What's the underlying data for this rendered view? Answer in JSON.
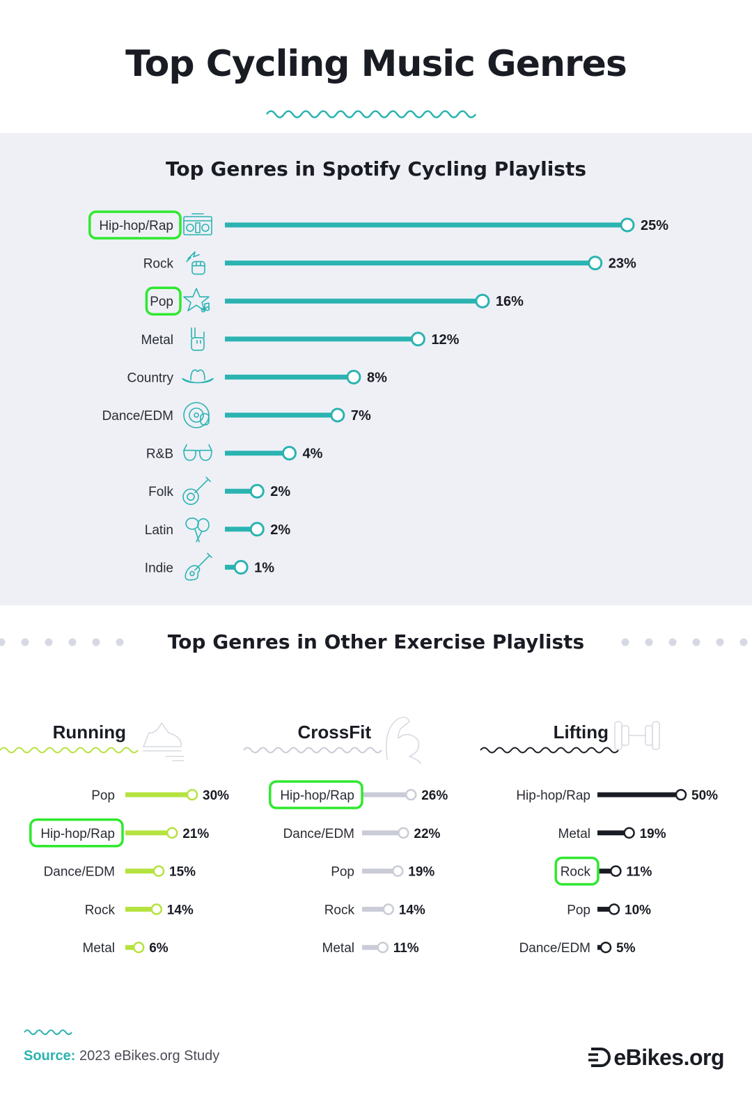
{
  "title": "Top Cycling Music Genres",
  "colors": {
    "teal": "#2bb3b1",
    "lime": "#b5e23f",
    "gray": "#c9cbd6",
    "dark": "#1a1c24",
    "highlight": "#2ee82e"
  },
  "chart_data": [
    {
      "type": "bar",
      "title": "Top Genres in Spotify Cycling Playlists",
      "unit": "%",
      "categories": [
        "Hip-hop/Rap",
        "Rock",
        "Pop",
        "Metal",
        "Country",
        "Dance/EDM",
        "R&B",
        "Folk",
        "Latin",
        "Indie"
      ],
      "values": [
        25,
        23,
        16,
        12,
        8,
        7,
        4,
        2,
        2,
        1
      ],
      "value_labels": [
        "25%",
        "23%",
        "16%",
        "12%",
        "8%",
        "7%",
        "4%",
        "2%",
        "2%",
        "1%"
      ],
      "icons": [
        "boombox-icon",
        "fist-lightning-icon",
        "star-note-icon",
        "rock-hand-icon",
        "cowboy-hat-icon",
        "vinyl-hand-icon",
        "sunglasses-icon",
        "banjo-icon",
        "maracas-icon",
        "guitar-icon"
      ],
      "highlighted": [
        "Hip-hop/Rap",
        "Pop"
      ],
      "xlim": [
        0,
        25
      ]
    },
    {
      "type": "bar",
      "title": "Running",
      "group_title": "Top Genres in Other Exercise Playlists",
      "icon": "running-shoe-icon",
      "categories": [
        "Pop",
        "Hip-hop/Rap",
        "Dance/EDM",
        "Rock",
        "Metal"
      ],
      "values": [
        30,
        21,
        15,
        14,
        6
      ],
      "value_labels": [
        "30%",
        "21%",
        "15%",
        "14%",
        "6%"
      ],
      "highlighted": [
        "Hip-hop/Rap"
      ],
      "xlim": [
        0,
        50
      ]
    },
    {
      "type": "bar",
      "title": "CrossFit",
      "icon": "flexed-arm-icon",
      "categories": [
        "Hip-hop/Rap",
        "Dance/EDM",
        "Pop",
        "Rock",
        "Metal"
      ],
      "values": [
        26,
        22,
        19,
        14,
        11
      ],
      "value_labels": [
        "26%",
        "22%",
        "19%",
        "14%",
        "11%"
      ],
      "highlighted": [
        "Hip-hop/Rap"
      ],
      "xlim": [
        0,
        50
      ]
    },
    {
      "type": "bar",
      "title": "Lifting",
      "icon": "dumbbell-icon",
      "categories": [
        "Hip-hop/Rap",
        "Metal",
        "Rock",
        "Pop",
        "Dance/EDM"
      ],
      "values": [
        50,
        19,
        11,
        10,
        5
      ],
      "value_labels": [
        "50%",
        "19%",
        "11%",
        "10%",
        "5%"
      ],
      "highlighted": [
        "Rock"
      ],
      "xlim": [
        0,
        50
      ]
    }
  ],
  "footer": {
    "source_label": "Source:",
    "source_text": "2023 eBikes.org Study",
    "brand": "eBikes.org"
  }
}
